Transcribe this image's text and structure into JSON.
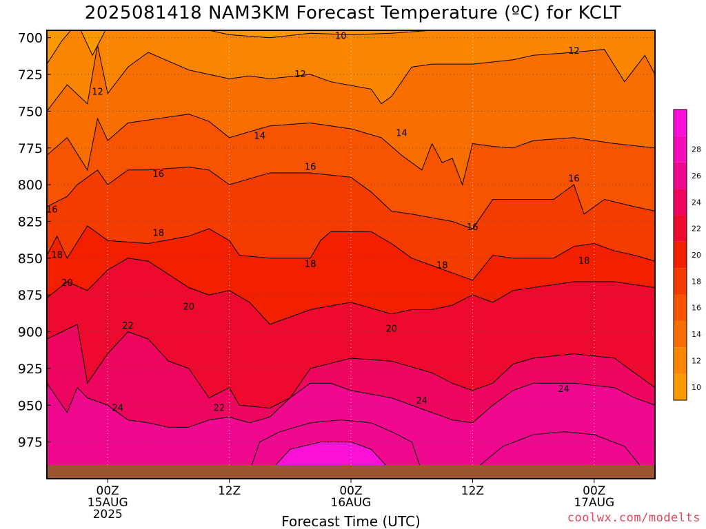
{
  "title": "2025081418 NAM3KM Forecast Temperature (ºC) for KCLT",
  "credit": "coolwx.com/modelts",
  "chart_data": {
    "type": "heatmap",
    "title": "2025081418 NAM3KM Forecast Temperature (ºC) for KCLT",
    "xlabel": "Forecast Time (UTC)",
    "ylabel": "",
    "x_ticks": [
      {
        "hour": 6,
        "lines": [
          "00Z",
          "15AUG",
          "2025"
        ]
      },
      {
        "hour": 18,
        "lines": [
          "12Z"
        ]
      },
      {
        "hour": 30,
        "lines": [
          "00Z",
          "16AUG"
        ]
      },
      {
        "hour": 42,
        "lines": [
          "12Z"
        ]
      },
      {
        "hour": 54,
        "lines": [
          "00Z",
          "17AUG"
        ]
      }
    ],
    "x_range_hours": [
      0,
      60
    ],
    "y_ticks": [
      700,
      725,
      750,
      775,
      800,
      825,
      850,
      875,
      900,
      925,
      950,
      975
    ],
    "y_range_hpa": [
      695,
      1000
    ],
    "surface_hpa": 988,
    "grid": true,
    "colorbar": {
      "levels": [
        10,
        12,
        14,
        16,
        18,
        20,
        22,
        24,
        26,
        28
      ],
      "colors": [
        "#fb9a00",
        "#fa8500",
        "#f86e00",
        "#f65400",
        "#f43c00",
        "#f21f00",
        "#ee0a2e",
        "#ed0560",
        "#f0088f",
        "#f50db9",
        "#fb10d8"
      ]
    },
    "isotherms": [
      {
        "value": 10,
        "points": [
          [
            0,
            718
          ],
          [
            1.5,
            702
          ],
          [
            3,
            690
          ],
          [
            4.5,
            712
          ],
          [
            6,
            692
          ],
          [
            10,
            695
          ],
          [
            14,
            692
          ],
          [
            18,
            698
          ],
          [
            22,
            700
          ],
          [
            26,
            697
          ],
          [
            30,
            698
          ],
          [
            34,
            697
          ],
          [
            38,
            695
          ],
          [
            42,
            690
          ],
          [
            50,
            690
          ],
          [
            56,
            690
          ],
          [
            60,
            690
          ]
        ]
      },
      {
        "value": 12,
        "points": [
          [
            0,
            750
          ],
          [
            2,
            732
          ],
          [
            4,
            745
          ],
          [
            5,
            705
          ],
          [
            6,
            738
          ],
          [
            8,
            720
          ],
          [
            10,
            710
          ],
          [
            14,
            722
          ],
          [
            18,
            728
          ],
          [
            20,
            726
          ],
          [
            22,
            728
          ],
          [
            26,
            725
          ],
          [
            28,
            730
          ],
          [
            32,
            735
          ],
          [
            33,
            745
          ],
          [
            34,
            740
          ],
          [
            36,
            720
          ],
          [
            38,
            718
          ],
          [
            42,
            718
          ],
          [
            46,
            715
          ],
          [
            48,
            712
          ],
          [
            52,
            710
          ],
          [
            55,
            708
          ],
          [
            57,
            730
          ],
          [
            59,
            712
          ],
          [
            60,
            725
          ]
        ]
      },
      {
        "value": 14,
        "points": [
          [
            0,
            780
          ],
          [
            2,
            768
          ],
          [
            4,
            790
          ],
          [
            5,
            755
          ],
          [
            6,
            770
          ],
          [
            8,
            758
          ],
          [
            10,
            756
          ],
          [
            14,
            752
          ],
          [
            16,
            757
          ],
          [
            18,
            768
          ],
          [
            22,
            760
          ],
          [
            26,
            758
          ],
          [
            30,
            762
          ],
          [
            33,
            768
          ],
          [
            35,
            780
          ],
          [
            37,
            790
          ],
          [
            38,
            772
          ],
          [
            39,
            785
          ],
          [
            40,
            782
          ],
          [
            41,
            800
          ],
          [
            42,
            772
          ],
          [
            44,
            774
          ],
          [
            46,
            775
          ],
          [
            48,
            770
          ],
          [
            52,
            768
          ],
          [
            56,
            772
          ],
          [
            60,
            775
          ]
        ]
      },
      {
        "value": 16,
        "points": [
          [
            0,
            815
          ],
          [
            2,
            808
          ],
          [
            3,
            800
          ],
          [
            5,
            790
          ],
          [
            6,
            800
          ],
          [
            8,
            790
          ],
          [
            10,
            790
          ],
          [
            14,
            788
          ],
          [
            16,
            790
          ],
          [
            18,
            800
          ],
          [
            22,
            792
          ],
          [
            26,
            792
          ],
          [
            30,
            795
          ],
          [
            32,
            805
          ],
          [
            34,
            818
          ],
          [
            36,
            820
          ],
          [
            40,
            825
          ],
          [
            42,
            830
          ],
          [
            44,
            810
          ],
          [
            46,
            810
          ],
          [
            50,
            810
          ],
          [
            52,
            800
          ],
          [
            53,
            820
          ],
          [
            55,
            810
          ],
          [
            58,
            815
          ],
          [
            60,
            818
          ]
        ]
      },
      {
        "value": 18,
        "points": [
          [
            0,
            848
          ],
          [
            1,
            835
          ],
          [
            2,
            850
          ],
          [
            4,
            828
          ],
          [
            6,
            838
          ],
          [
            10,
            840
          ],
          [
            14,
            835
          ],
          [
            16,
            830
          ],
          [
            18,
            838
          ],
          [
            19,
            848
          ],
          [
            22,
            850
          ],
          [
            26,
            850
          ],
          [
            27,
            838
          ],
          [
            28,
            832
          ],
          [
            30,
            832
          ],
          [
            32,
            832
          ],
          [
            34,
            840
          ],
          [
            36,
            850
          ],
          [
            38,
            855
          ],
          [
            40,
            860
          ],
          [
            42,
            865
          ],
          [
            44,
            848
          ],
          [
            46,
            850
          ],
          [
            50,
            850
          ],
          [
            52,
            842
          ],
          [
            54,
            840
          ],
          [
            56,
            845
          ],
          [
            58,
            848
          ],
          [
            60,
            852
          ]
        ]
      },
      {
        "value": 20,
        "points": [
          [
            0,
            877
          ],
          [
            2,
            866
          ],
          [
            4,
            872
          ],
          [
            6,
            858
          ],
          [
            8,
            850
          ],
          [
            10,
            852
          ],
          [
            14,
            870
          ],
          [
            16,
            875
          ],
          [
            18,
            872
          ],
          [
            20,
            880
          ],
          [
            22,
            895
          ],
          [
            26,
            885
          ],
          [
            30,
            880
          ],
          [
            34,
            888
          ],
          [
            36,
            885
          ],
          [
            38,
            885
          ],
          [
            40,
            882
          ],
          [
            42,
            875
          ],
          [
            44,
            880
          ],
          [
            46,
            872
          ],
          [
            48,
            870
          ],
          [
            52,
            866
          ],
          [
            56,
            866
          ],
          [
            60,
            870
          ]
        ]
      },
      {
        "value": 22,
        "points": [
          [
            0,
            905
          ],
          [
            3,
            895
          ],
          [
            4,
            935
          ],
          [
            6,
            915
          ],
          [
            8,
            900
          ],
          [
            10,
            905
          ],
          [
            12,
            920
          ],
          [
            14,
            925
          ],
          [
            16,
            945
          ],
          [
            18,
            938
          ],
          [
            19,
            950
          ],
          [
            22,
            952
          ],
          [
            24,
            945
          ],
          [
            26,
            925
          ],
          [
            30,
            918
          ],
          [
            34,
            920
          ],
          [
            38,
            928
          ],
          [
            40,
            935
          ],
          [
            42,
            940
          ],
          [
            44,
            935
          ],
          [
            46,
            922
          ],
          [
            48,
            918
          ],
          [
            52,
            915
          ],
          [
            56,
            918
          ],
          [
            60,
            938
          ]
        ]
      },
      {
        "value": 24,
        "points": [
          [
            0,
            935
          ],
          [
            2,
            955
          ],
          [
            3,
            938
          ],
          [
            4,
            945
          ],
          [
            6,
            950
          ],
          [
            8,
            960
          ],
          [
            10,
            962
          ],
          [
            12,
            965
          ],
          [
            14,
            965
          ],
          [
            16,
            960
          ],
          [
            18,
            958
          ],
          [
            20,
            962
          ],
          [
            22,
            958
          ],
          [
            24,
            945
          ],
          [
            26,
            935
          ],
          [
            28,
            935
          ],
          [
            30,
            940
          ],
          [
            34,
            945
          ],
          [
            38,
            955
          ],
          [
            40,
            960
          ],
          [
            42,
            962
          ],
          [
            44,
            950
          ],
          [
            46,
            940
          ],
          [
            48,
            935
          ],
          [
            52,
            935
          ],
          [
            56,
            938
          ],
          [
            58,
            945
          ],
          [
            60,
            950
          ]
        ]
      }
    ],
    "contour_labels": [
      {
        "text": "10",
        "hour": 29,
        "hpa": 699
      },
      {
        "text": "12",
        "hour": 5,
        "hpa": 737
      },
      {
        "text": "12",
        "hour": 25,
        "hpa": 725
      },
      {
        "text": "12",
        "hour": 52,
        "hpa": 709
      },
      {
        "text": "14",
        "hour": 21,
        "hpa": 767
      },
      {
        "text": "14",
        "hour": 35,
        "hpa": 765
      },
      {
        "text": "16",
        "hour": 0.5,
        "hpa": 817
      },
      {
        "text": "16",
        "hour": 11,
        "hpa": 793
      },
      {
        "text": "16",
        "hour": 26,
        "hpa": 788
      },
      {
        "text": "16",
        "hour": 42,
        "hpa": 829
      },
      {
        "text": "16",
        "hour": 52,
        "hpa": 796
      },
      {
        "text": "18",
        "hour": 1,
        "hpa": 848
      },
      {
        "text": "18",
        "hour": 11,
        "hpa": 833
      },
      {
        "text": "18",
        "hour": 26,
        "hpa": 854
      },
      {
        "text": "18",
        "hour": 39,
        "hpa": 855
      },
      {
        "text": "18",
        "hour": 53,
        "hpa": 852
      },
      {
        "text": "20",
        "hour": 2,
        "hpa": 867
      },
      {
        "text": "20",
        "hour": 14,
        "hpa": 883
      },
      {
        "text": "20",
        "hour": 34,
        "hpa": 898
      },
      {
        "text": "22",
        "hour": 8,
        "hpa": 896
      },
      {
        "text": "22",
        "hour": 17,
        "hpa": 952
      },
      {
        "text": "24",
        "hour": 7,
        "hpa": 952
      },
      {
        "text": "24",
        "hour": 37,
        "hpa": 947
      },
      {
        "text": "24",
        "hour": 51,
        "hpa": 939
      }
    ]
  }
}
